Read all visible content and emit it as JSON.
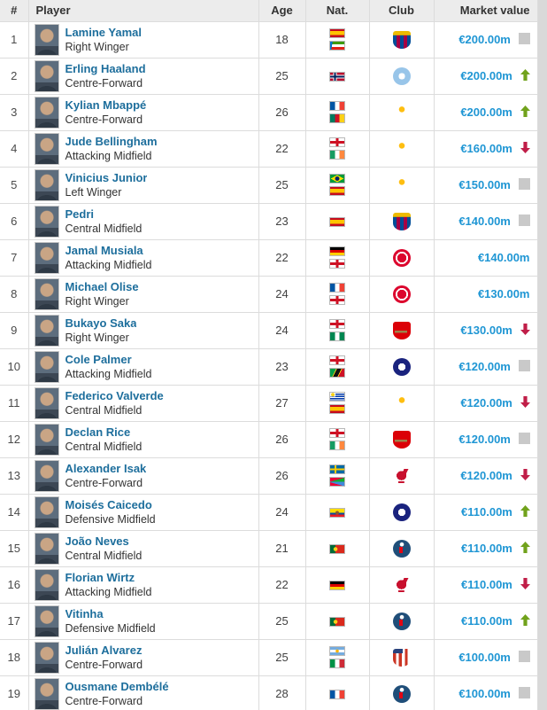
{
  "table": {
    "headers": {
      "rank": "#",
      "player": "Player",
      "age": "Age",
      "nat": "Nat.",
      "club": "Club",
      "value": "Market value"
    },
    "colors": {
      "link_blue": "#1d6e9c",
      "value_blue": "#1f96d4",
      "trend_up_green": "#71a21c",
      "trend_down_red": "#c01e48",
      "trend_steady_grey": "#c9c9c9",
      "header_bg": "#ececec",
      "border": "#dcdcdc",
      "page_bg": "#d9d9d9"
    },
    "rows": [
      {
        "rank": "1",
        "name": "Lamine Yamal",
        "position": "Right Winger",
        "age": "18",
        "nats": [
          "spain",
          "equatorial-guinea"
        ],
        "club": "barcelona",
        "value": "€200.00m",
        "trend": "steady"
      },
      {
        "rank": "2",
        "name": "Erling Haaland",
        "position": "Centre-Forward",
        "age": "25",
        "nats": [
          "norway"
        ],
        "club": "man-city",
        "value": "€200.00m",
        "trend": "up"
      },
      {
        "rank": "3",
        "name": "Kylian Mbappé",
        "position": "Centre-Forward",
        "age": "26",
        "nats": [
          "france",
          "cameroon"
        ],
        "club": "real-madrid",
        "value": "€200.00m",
        "trend": "up"
      },
      {
        "rank": "4",
        "name": "Jude Bellingham",
        "position": "Attacking Midfield",
        "age": "22",
        "nats": [
          "england",
          "ireland"
        ],
        "club": "real-madrid",
        "value": "€160.00m",
        "trend": "down"
      },
      {
        "rank": "5",
        "name": "Vinicius Junior",
        "position": "Left Winger",
        "age": "25",
        "nats": [
          "brazil",
          "spain"
        ],
        "club": "real-madrid",
        "value": "€150.00m",
        "trend": "steady"
      },
      {
        "rank": "6",
        "name": "Pedri",
        "position": "Central Midfield",
        "age": "23",
        "nats": [
          "spain"
        ],
        "club": "barcelona",
        "value": "€140.00m",
        "trend": "steady"
      },
      {
        "rank": "7",
        "name": "Jamal Musiala",
        "position": "Attacking Midfield",
        "age": "22",
        "nats": [
          "germany",
          "england"
        ],
        "club": "bayern",
        "value": "€140.00m",
        "trend": "none"
      },
      {
        "rank": "8",
        "name": "Michael Olise",
        "position": "Right Winger",
        "age": "24",
        "nats": [
          "france",
          "england"
        ],
        "club": "bayern",
        "value": "€130.00m",
        "trend": "none"
      },
      {
        "rank": "9",
        "name": "Bukayo Saka",
        "position": "Right Winger",
        "age": "24",
        "nats": [
          "england",
          "nigeria"
        ],
        "club": "arsenal",
        "value": "€130.00m",
        "trend": "down"
      },
      {
        "rank": "10",
        "name": "Cole Palmer",
        "position": "Attacking Midfield",
        "age": "23",
        "nats": [
          "england",
          "saint-kitts-nevis"
        ],
        "club": "chelsea",
        "value": "€120.00m",
        "trend": "steady"
      },
      {
        "rank": "11",
        "name": "Federico Valverde",
        "position": "Central Midfield",
        "age": "27",
        "nats": [
          "uruguay",
          "spain"
        ],
        "club": "real-madrid",
        "value": "€120.00m",
        "trend": "down"
      },
      {
        "rank": "12",
        "name": "Declan Rice",
        "position": "Central Midfield",
        "age": "26",
        "nats": [
          "england",
          "ireland"
        ],
        "club": "arsenal",
        "value": "€120.00m",
        "trend": "steady"
      },
      {
        "rank": "13",
        "name": "Alexander Isak",
        "position": "Centre-Forward",
        "age": "26",
        "nats": [
          "sweden",
          "eritrea"
        ],
        "club": "liverpool",
        "value": "€120.00m",
        "trend": "down"
      },
      {
        "rank": "14",
        "name": "Moisés Caicedo",
        "position": "Defensive Midfield",
        "age": "24",
        "nats": [
          "ecuador"
        ],
        "club": "chelsea",
        "value": "€110.00m",
        "trend": "up"
      },
      {
        "rank": "15",
        "name": "João Neves",
        "position": "Central Midfield",
        "age": "21",
        "nats": [
          "portugal"
        ],
        "club": "psg",
        "value": "€110.00m",
        "trend": "up"
      },
      {
        "rank": "16",
        "name": "Florian Wirtz",
        "position": "Attacking Midfield",
        "age": "22",
        "nats": [
          "germany"
        ],
        "club": "liverpool",
        "value": "€110.00m",
        "trend": "down"
      },
      {
        "rank": "17",
        "name": "Vitinha",
        "position": "Defensive Midfield",
        "age": "25",
        "nats": [
          "portugal"
        ],
        "club": "psg",
        "value": "€110.00m",
        "trend": "up"
      },
      {
        "rank": "18",
        "name": "Julián Alvarez",
        "position": "Centre-Forward",
        "age": "25",
        "nats": [
          "argentina",
          "italy"
        ],
        "club": "atletico-madrid",
        "value": "€100.00m",
        "trend": "steady"
      },
      {
        "rank": "19",
        "name": "Ousmane Dembélé",
        "position": "Centre-Forward",
        "age": "28",
        "nats": [
          "france"
        ],
        "club": "psg",
        "value": "€100.00m",
        "trend": "steady"
      }
    ]
  }
}
